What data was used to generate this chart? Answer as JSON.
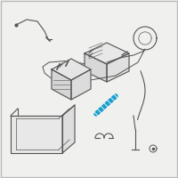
{
  "background_color": "#f0f0ee",
  "border_color": "#bbbbbb",
  "line_color": "#555555",
  "highlight_color": "#1a9fcc",
  "fig_w": 2.0,
  "fig_h": 2.0,
  "dpi": 100
}
